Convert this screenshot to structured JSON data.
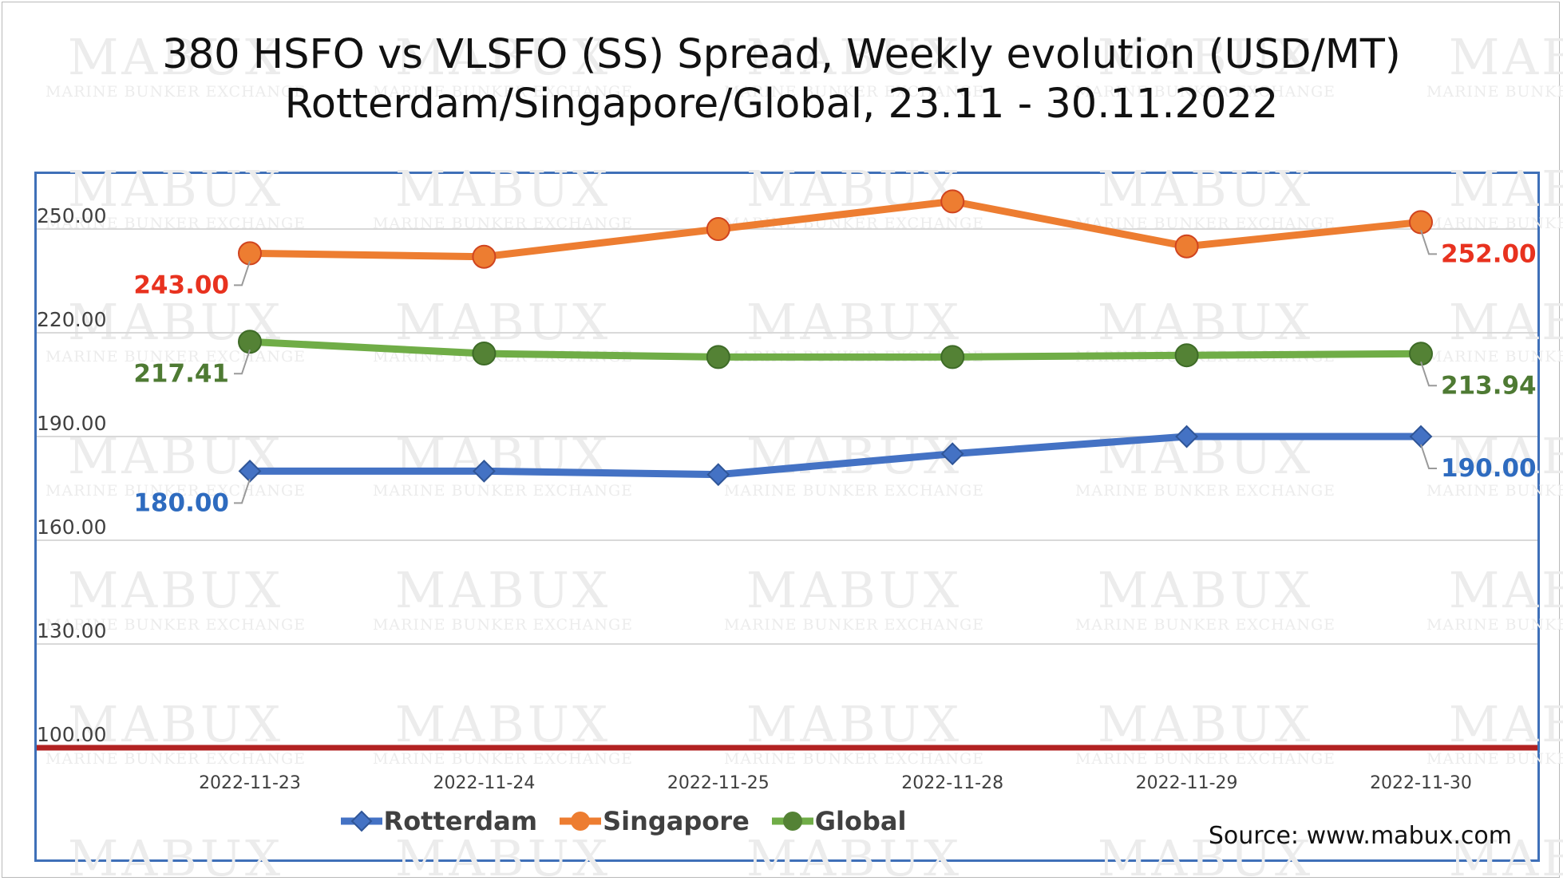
{
  "chart_data": {
    "type": "line",
    "title": "380 HSFO vs VLSFO (SS) Spread, Weekly evolution (USD/MT)",
    "subtitle": "Rotterdam/Singapore/Global, 23.11 - 30.11.2022",
    "categories": [
      "2022-11-23",
      "2022-11-24",
      "2022-11-25",
      "2022-11-28",
      "2022-11-29",
      "2022-11-30"
    ],
    "y_ticks": [
      "100.00",
      "130.00",
      "160.00",
      "190.00",
      "220.00",
      "250.00"
    ],
    "ylim": [
      100,
      260
    ],
    "grid": true,
    "legend_position": "bottom",
    "reference_line": {
      "value": 100,
      "color": "#b22222"
    },
    "series": [
      {
        "name": "Rotterdam",
        "marker": "diamond",
        "color": "#4472c4",
        "marker_fill": "#4472c4",
        "label_color": "#2e6bbf",
        "values": [
          180,
          180,
          179,
          185,
          190,
          190
        ],
        "first_label": "180.00",
        "last_label": "190.00"
      },
      {
        "name": "Singapore",
        "marker": "circle",
        "color": "#ed7d31",
        "marker_fill": "#ed7d31",
        "label_color": "#e8321f",
        "values": [
          243,
          242,
          250,
          258,
          245,
          252
        ],
        "first_label": "243.00",
        "last_label": "252.00"
      },
      {
        "name": "Global",
        "marker": "circle",
        "color": "#70ad47",
        "marker_fill": "#548235",
        "label_color": "#4e7a33",
        "values": [
          217.41,
          214,
          213,
          213,
          213.5,
          213.94
        ],
        "first_label": "217.41",
        "last_label": "213.94"
      }
    ],
    "source": "Source: www.mabux.com"
  },
  "watermark": {
    "brand": "MABUX",
    "tagline": "MARINE BUNKER EXCHANGE"
  }
}
